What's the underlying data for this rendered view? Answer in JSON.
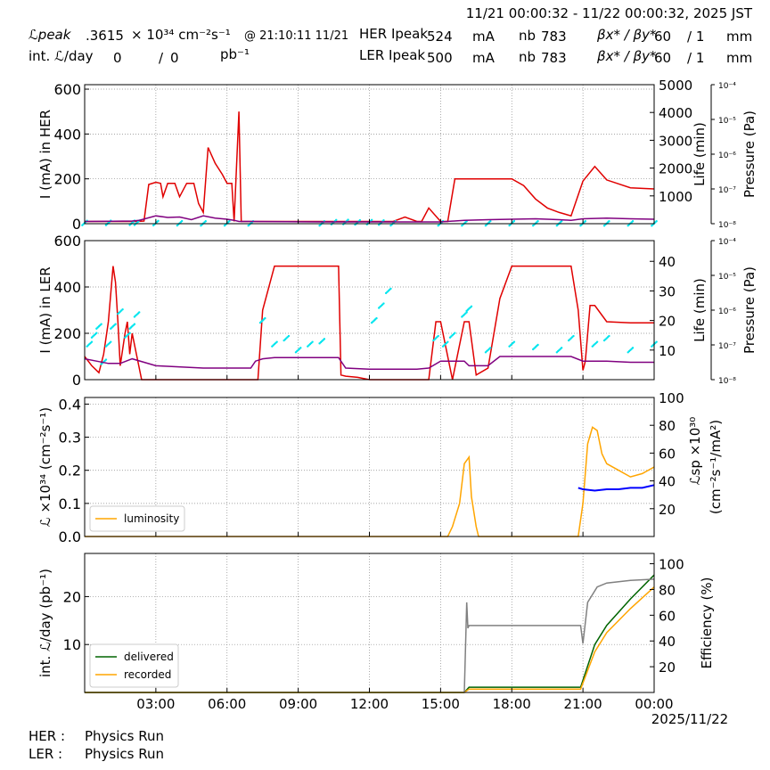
{
  "header": {
    "time_range": "11/21 00:00:32 - 11/22 00:00:32, 2025 JST",
    "lpeak_label": "ℒpeak",
    "lpeak_value": ".3615",
    "lpeak_unit": "× 10³⁴ cm⁻²s⁻¹",
    "lpeak_time": "@ 21:10:11 11/21",
    "intl_label": "int. ℒ/day",
    "intl_value1": "0",
    "intl_sep": "/",
    "intl_value2": "0",
    "intl_unit": "pb⁻¹",
    "her": {
      "label": "HER Ipeak",
      "current": "524",
      "unit": "mA",
      "nb_label": "nb",
      "nb": "783",
      "beta_label": "βx* / βy*",
      "beta_x": "60",
      "beta_sep": "/ 1",
      "beta_unit": "mm"
    },
    "ler": {
      "label": "LER Ipeak",
      "current": "500",
      "unit": "mA",
      "nb_label": "nb",
      "nb": "783",
      "beta_label": "βx* / βy*",
      "beta_x": "60",
      "beta_sep": "/ 1",
      "beta_unit": "mm"
    }
  },
  "footer": {
    "her_label": "HER :",
    "her_status": "Physics Run",
    "ler_label": "LER :",
    "ler_status": "Physics Run"
  },
  "colors": {
    "current": "#e00000",
    "life": "#00e5ee",
    "pressure": "#800080",
    "luminosity": "#ffa500",
    "specific": "#0000ff",
    "delivered": "#006400",
    "recorded": "#ffa500",
    "efficiency": "#808080"
  },
  "chart_data": [
    {
      "type": "line",
      "id": "her",
      "ylabel": "I (mA) in HER",
      "ylim": [
        0,
        620
      ],
      "yticks": [
        0,
        200,
        400,
        600
      ],
      "y2label": "Life (min)",
      "y2lim": [
        0,
        5000
      ],
      "y2ticks": [
        1000,
        2000,
        3000,
        4000,
        5000
      ],
      "y3label": "Pressure (Pa)",
      "y3ticks": [
        "10⁻⁸",
        "10⁻⁷",
        "10⁻⁶",
        "10⁻⁵",
        "10⁻⁴"
      ],
      "xlim": [
        0,
        24
      ],
      "grid": true,
      "series": [
        {
          "role": "current",
          "x": [
            0,
            2.2,
            2.5,
            2.7,
            3.0,
            3.2,
            3.3,
            3.5,
            3.8,
            4.0,
            4.3,
            4.6,
            4.8,
            5.0,
            5.2,
            5.5,
            5.8,
            6.0,
            6.2,
            6.3,
            6.5,
            6.6,
            7.0,
            8,
            9,
            10,
            11,
            12,
            13,
            13.5,
            14,
            14.2,
            14.5,
            15,
            15.3,
            15.6,
            16,
            16.2,
            16.5,
            17,
            17.5,
            18,
            18.5,
            19,
            19.5,
            20,
            20.5,
            21,
            21.5,
            22,
            23,
            24
          ],
          "y": [
            10,
            10,
            12,
            175,
            185,
            180,
            120,
            180,
            180,
            120,
            180,
            180,
            90,
            50,
            340,
            270,
            220,
            180,
            180,
            10,
            500,
            10,
            10,
            10,
            10,
            10,
            10,
            10,
            10,
            30,
            10,
            10,
            70,
            10,
            10,
            200,
            200,
            200,
            200,
            200,
            200,
            200,
            170,
            110,
            70,
            50,
            35,
            190,
            255,
            195,
            160,
            155
          ]
        },
        {
          "role": "life",
          "points": [
            [
              0,
              25
            ],
            [
              1,
              28
            ],
            [
              2,
              30
            ],
            [
              2.2,
              32
            ],
            [
              3,
              20
            ],
            [
              4,
              15
            ],
            [
              5,
              10
            ],
            [
              6,
              12
            ],
            [
              7,
              10
            ],
            [
              10,
              10
            ],
            [
              10.5,
              55
            ],
            [
              11,
              60
            ],
            [
              11.5,
              45
            ],
            [
              12,
              55
            ],
            [
              12.5,
              40
            ],
            [
              13,
              15
            ],
            [
              15,
              12
            ],
            [
              16,
              10
            ],
            [
              17,
              12
            ],
            [
              18,
              15
            ],
            [
              19,
              10
            ],
            [
              20,
              12
            ],
            [
              21,
              10
            ],
            [
              22,
              8
            ],
            [
              23,
              10
            ],
            [
              24,
              8
            ]
          ]
        },
        {
          "role": "pressure",
          "x": [
            0,
            2,
            2.3,
            3,
            3.5,
            4,
            4.5,
            5,
            5.5,
            6,
            6.3,
            6.5,
            7,
            10,
            15,
            16,
            17,
            18,
            19,
            20,
            20.5,
            21,
            22,
            23,
            24
          ],
          "y": [
            10,
            12,
            15,
            35,
            28,
            30,
            18,
            35,
            25,
            20,
            15,
            10,
            10,
            8,
            8,
            15,
            18,
            20,
            22,
            18,
            15,
            22,
            25,
            22,
            20
          ]
        }
      ]
    },
    {
      "type": "line",
      "id": "ler",
      "ylabel": "I (mA) in LER",
      "ylim": [
        0,
        600
      ],
      "yticks": [
        0,
        200,
        400,
        600
      ],
      "y2label": "Life (min)",
      "y2lim": [
        0,
        47
      ],
      "y2ticks": [
        10,
        20,
        30,
        40
      ],
      "y3label": "Pressure (Pa)",
      "y3ticks": [
        "10⁻⁸",
        "10⁻⁷",
        "10⁻⁶",
        "10⁻⁵",
        "10⁻⁴"
      ],
      "xlim": [
        0,
        24
      ],
      "grid": true,
      "series": [
        {
          "role": "current",
          "x": [
            0,
            0.3,
            0.6,
            0.8,
            1.0,
            1.2,
            1.3,
            1.4,
            1.5,
            1.7,
            1.8,
            1.9,
            2.0,
            2.2,
            2.4,
            2.6,
            2.8,
            3.0,
            5,
            7,
            7.3,
            7.5,
            8,
            10,
            10.7,
            10.8,
            11,
            11.5,
            12,
            13,
            14,
            14.5,
            14.8,
            15,
            15.5,
            16,
            16.2,
            16.5,
            17,
            17.5,
            18,
            19,
            20,
            20.5,
            20.8,
            21,
            21.1,
            21.3,
            21.5,
            22,
            23,
            24
          ],
          "y": [
            100,
            60,
            30,
            110,
            250,
            490,
            420,
            250,
            60,
            200,
            250,
            110,
            200,
            100,
            0,
            0,
            0,
            0,
            0,
            0,
            0,
            300,
            490,
            490,
            490,
            20,
            15,
            10,
            0,
            0,
            0,
            0,
            250,
            250,
            0,
            250,
            250,
            20,
            50,
            350,
            490,
            490,
            490,
            490,
            300,
            40,
            80,
            320,
            320,
            250,
            245,
            245
          ]
        },
        {
          "role": "life",
          "points": [
            [
              0.2,
              12
            ],
            [
              0.4,
              15
            ],
            [
              0.6,
              18
            ],
            [
              0.8,
              6
            ],
            [
              1.0,
              12
            ],
            [
              1.2,
              18
            ],
            [
              1.5,
              23
            ],
            [
              1.8,
              15
            ],
            [
              2.0,
              18
            ],
            [
              2.2,
              22
            ],
            [
              7.5,
              20
            ],
            [
              8,
              12
            ],
            [
              8.5,
              14
            ],
            [
              9,
              10
            ],
            [
              9.5,
              12
            ],
            [
              10,
              13
            ],
            [
              12.2,
              20
            ],
            [
              12.5,
              25
            ],
            [
              12.8,
              30
            ],
            [
              14.8,
              14
            ],
            [
              15.2,
              12
            ],
            [
              15.5,
              15
            ],
            [
              16,
              22
            ],
            [
              16.2,
              24
            ],
            [
              17,
              10
            ],
            [
              18,
              12
            ],
            [
              19,
              11
            ],
            [
              20,
              10
            ],
            [
              20.5,
              14
            ],
            [
              21.5,
              12
            ],
            [
              22,
              14
            ],
            [
              23,
              10
            ],
            [
              24,
              12
            ]
          ]
        },
        {
          "role": "pressure",
          "x": [
            0,
            0.5,
            1,
            1.5,
            2,
            3,
            5,
            7,
            7.2,
            7.5,
            8,
            10,
            10.7,
            11,
            12,
            13,
            14,
            14.5,
            15,
            16,
            16.2,
            17,
            17.5,
            18,
            20,
            20.5,
            21,
            21.5,
            22,
            23,
            24
          ],
          "y": [
            90,
            80,
            70,
            70,
            90,
            60,
            50,
            50,
            80,
            90,
            95,
            95,
            95,
            50,
            45,
            45,
            45,
            50,
            80,
            80,
            60,
            60,
            100,
            100,
            100,
            100,
            80,
            80,
            80,
            75,
            75
          ]
        }
      ]
    },
    {
      "type": "line",
      "id": "lumi",
      "ylabel": "ℒ ×10³⁴ (cm⁻²s⁻¹)",
      "ylim": [
        0,
        0.42
      ],
      "yticks": [
        0.0,
        0.1,
        0.2,
        0.3,
        0.4
      ],
      "y2label": "ℒsp ×10³⁰ (cm⁻²s⁻¹/mA²)",
      "y2lim": [
        0,
        100
      ],
      "y2ticks": [
        20,
        40,
        60,
        80,
        100
      ],
      "xlim": [
        0,
        24
      ],
      "grid": true,
      "legend": "lower-left",
      "series": [
        {
          "role": "luminosity",
          "name": "luminosity",
          "x": [
            0,
            15.3,
            15.5,
            15.8,
            16.0,
            16.2,
            16.3,
            16.5,
            16.6,
            20.8,
            21.0,
            21.2,
            21.4,
            21.6,
            21.8,
            22.0,
            22.5,
            23,
            23.5,
            24
          ],
          "y": [
            0,
            0,
            0.03,
            0.1,
            0.22,
            0.24,
            0.12,
            0.03,
            0,
            0,
            0.1,
            0.28,
            0.33,
            0.32,
            0.25,
            0.22,
            0.2,
            0.18,
            0.19,
            0.21
          ]
        },
        {
          "role": "specific",
          "x": [
            20.8,
            21.0,
            21.5,
            22,
            22.5,
            23,
            23.5,
            24
          ],
          "y": [
            35,
            34,
            33,
            34,
            34,
            35,
            35,
            37
          ]
        }
      ]
    },
    {
      "type": "line",
      "id": "integrated",
      "ylabel": "int. ℒ/day (pb⁻¹)",
      "ylim": [
        0,
        29
      ],
      "yticks": [
        10,
        20
      ],
      "y2label": "Efficiency (%)",
      "y2lim": [
        0,
        108
      ],
      "y2ticks": [
        20,
        40,
        60,
        80,
        100
      ],
      "xlim": [
        0,
        24
      ],
      "xticks": [
        "03:00",
        "06:00",
        "09:00",
        "12:00",
        "15:00",
        "18:00",
        "21:00",
        "00:00"
      ],
      "xdate": "2025/11/22",
      "grid": true,
      "legend": "lower-left",
      "series": [
        {
          "role": "delivered",
          "name": "delivered",
          "x": [
            0,
            16.0,
            16.2,
            20.9,
            21.5,
            22,
            23,
            24
          ],
          "y": [
            0,
            0,
            1.1,
            1.1,
            10,
            14,
            19.5,
            24.5
          ]
        },
        {
          "role": "recorded",
          "name": "recorded",
          "x": [
            0,
            16.0,
            16.2,
            20.9,
            21.5,
            22,
            23,
            24
          ],
          "y": [
            0,
            0,
            0.7,
            0.7,
            8.5,
            12.5,
            17.5,
            22
          ]
        },
        {
          "role": "efficiency",
          "x": [
            16.0,
            16.1,
            16.15,
            16.2,
            16.3,
            18,
            20.9,
            21.0,
            21.2,
            21.6,
            22,
            23,
            24
          ],
          "y": [
            0,
            70,
            50,
            52,
            52,
            52,
            52,
            38,
            70,
            82,
            85,
            87,
            88
          ]
        }
      ]
    }
  ]
}
